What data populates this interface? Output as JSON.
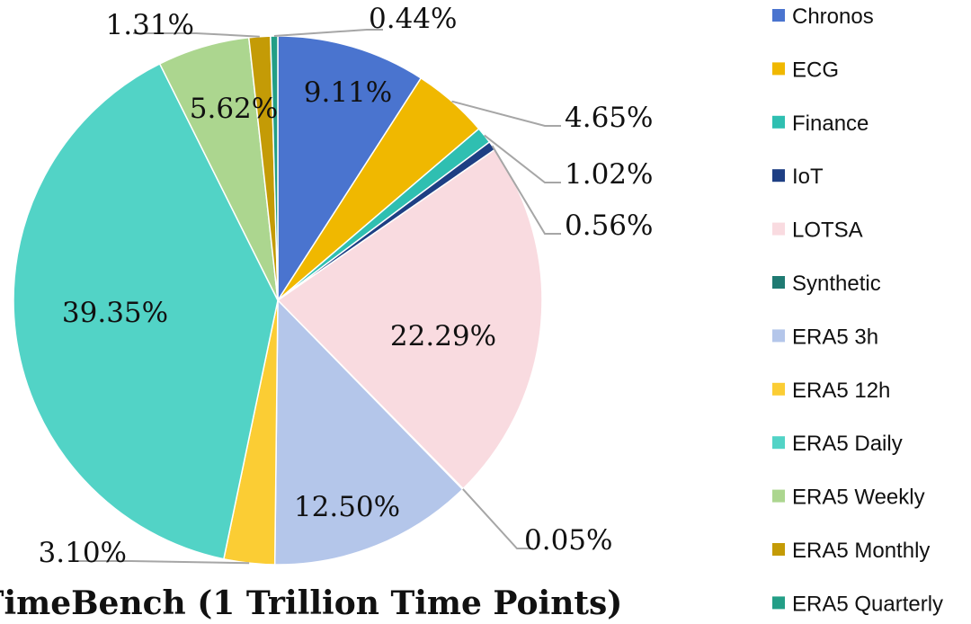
{
  "chart_data": {
    "type": "pie",
    "title": "TimeBench (1 Trillion Time Points)",
    "legend_position": "right",
    "series": [
      {
        "name": "Chronos",
        "value": 9.11,
        "label": "9.11%",
        "color": "#4a74cf"
      },
      {
        "name": "ECG",
        "value": 4.65,
        "label": "4.65%",
        "color": "#f0b800"
      },
      {
        "name": "Finance",
        "value": 1.02,
        "label": "1.02%",
        "color": "#2fbfb1"
      },
      {
        "name": "IoT",
        "value": 0.56,
        "label": "0.56%",
        "color": "#1e3f84"
      },
      {
        "name": "LOTSA",
        "value": 22.29,
        "label": "22.29%",
        "color": "#f9dbe0"
      },
      {
        "name": "Synthetic",
        "value": 0.05,
        "label": "0.05%",
        "color": "#1f7a72"
      },
      {
        "name": "ERA5 3h",
        "value": 12.5,
        "label": "12.50%",
        "color": "#b4c6ea"
      },
      {
        "name": "ERA5 12h",
        "value": 3.1,
        "label": "3.10%",
        "color": "#fbcd34"
      },
      {
        "name": "ERA5 Daily",
        "value": 39.35,
        "label": "39.35%",
        "color": "#52d3c6"
      },
      {
        "name": "ERA5 Weekly",
        "value": 5.62,
        "label": "5.62%",
        "color": "#acd68f"
      },
      {
        "name": "ERA5 Monthly",
        "value": 1.31,
        "label": "1.31%",
        "color": "#c49b06"
      },
      {
        "name": "ERA5 Quarterly",
        "value": 0.44,
        "label": "0.44%",
        "color": "#239e86"
      }
    ]
  }
}
